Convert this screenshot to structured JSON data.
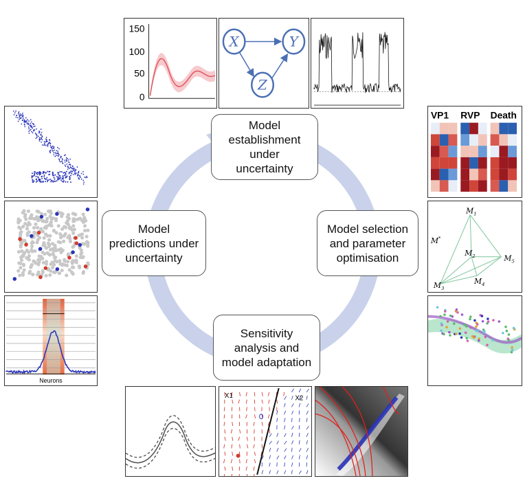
{
  "stages": {
    "top": "Model\nestablishment\nunder\nuncertainty",
    "right": "Model selection\nand parameter\noptimisation",
    "bottom": "Sensitivity\nanalysis and\nmodel adaptation",
    "left": "Model\npredictions under\nuncertainty"
  },
  "top_plot": {
    "yticks": [
      "150",
      "100",
      "50",
      "0"
    ],
    "line_color": "#e05560",
    "band_color": "#f4b3b8"
  },
  "causal_graph": {
    "nodes": [
      "X",
      "Y",
      "Z"
    ]
  },
  "heatmap_panel": {
    "labels": [
      "VP1",
      "RVP",
      "Death"
    ]
  },
  "model_network": {
    "labels": [
      "M",
      "M",
      "M",
      "M",
      "M",
      "M"
    ],
    "subscripts": [
      "1",
      "*",
      "2",
      "5",
      "3",
      "4"
    ]
  },
  "neurons_panel": {
    "xlabel": "Neurons"
  },
  "vector_field": {
    "labels": [
      "X1",
      "X2"
    ]
  },
  "colors": {
    "arrow": "#c9d2ea",
    "blue": "#2a34b8",
    "red": "#d33a2c"
  }
}
